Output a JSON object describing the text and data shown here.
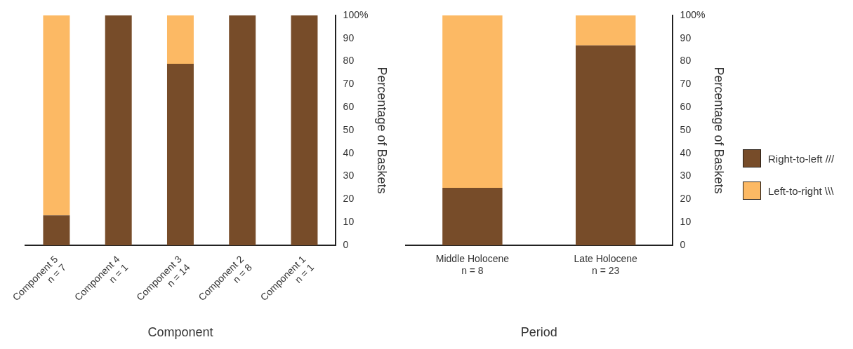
{
  "chart_data": [
    {
      "type": "bar",
      "stacked": true,
      "xlabel": "Component",
      "ylabel": "Percentage of Baskets",
      "categories": [
        "Component 5\nn = 7",
        "Component 4\nn = 1",
        "Component 3\nn = 14",
        "Component 2\nn = 8",
        "Component 1\nn = 1"
      ],
      "series": [
        {
          "color": "#774c29",
          "values": [
            13,
            100,
            79,
            100,
            100
          ]
        },
        {
          "color": "#fcb964",
          "values": [
            87,
            0,
            21,
            0,
            0
          ]
        }
      ],
      "ylim": [
        0,
        100
      ],
      "yticks": [
        0,
        10,
        20,
        30,
        40,
        50,
        60,
        70,
        80,
        90,
        {
          "value": 100,
          "label": "100%"
        }
      ],
      "grid": false,
      "legend": false
    },
    {
      "type": "bar",
      "stacked": true,
      "xlabel": "Period",
      "ylabel": "Percentage of Baskets",
      "categories": [
        "Middle Holocene\nn = 8",
        "Late Holocene\nn = 23"
      ],
      "series": [
        {
          "name": "Right-to-left ///",
          "color": "#774c29",
          "values": [
            25,
            87
          ]
        },
        {
          "name": "Left-to-right \\\\\\",
          "color": "#fcb964",
          "values": [
            75,
            13
          ]
        }
      ],
      "ylim": [
        0,
        100
      ],
      "yticks": [
        0,
        10,
        20,
        30,
        40,
        50,
        60,
        70,
        80,
        90,
        {
          "value": 100,
          "label": "100%"
        }
      ],
      "grid": false,
      "legend": "right"
    }
  ]
}
